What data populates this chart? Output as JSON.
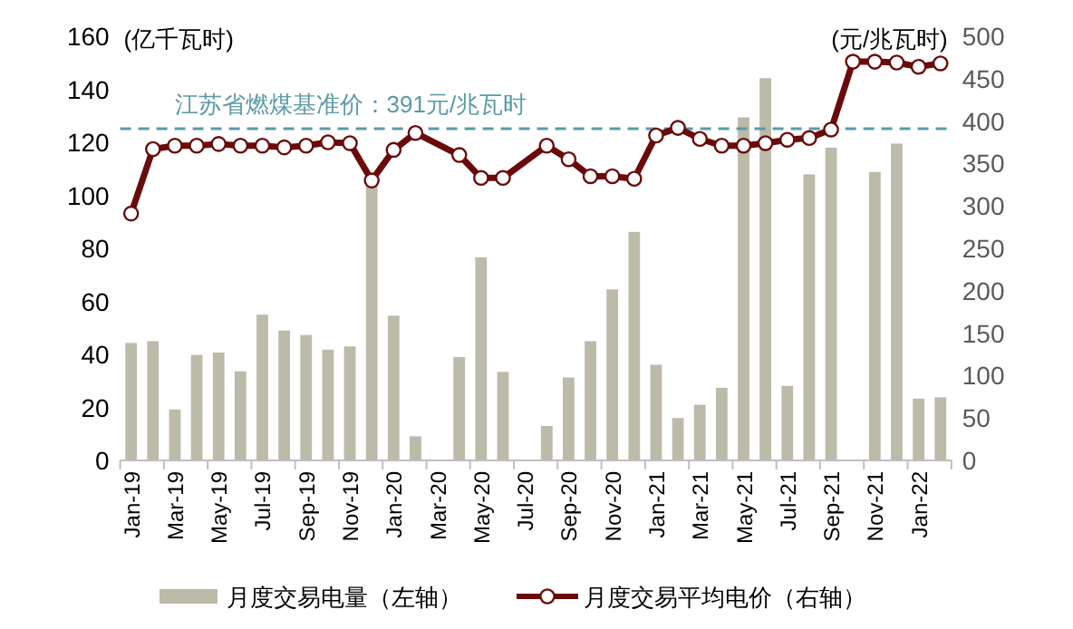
{
  "chart_data": {
    "type": "bar",
    "categories": [
      "Jan-19",
      null,
      "Mar-19",
      null,
      "May-19",
      null,
      "Jul-19",
      null,
      "Sep-19",
      null,
      "Nov-19",
      null,
      "Jan-20",
      null,
      "Mar-20",
      null,
      "May-20",
      null,
      "Jul-20",
      null,
      "Sep-20",
      null,
      "Nov-20",
      null,
      "Jan-21",
      null,
      "Mar-21",
      null,
      "May-21",
      null,
      "Jul-21",
      null,
      "Sep-21",
      null,
      "Nov-21",
      null,
      "Jan-22",
      null
    ],
    "series": [
      {
        "name": "月度交易电量（左轴）",
        "color": "#bcbaa8",
        "values": [
          44.3,
          45,
          19.2,
          39.8,
          40.7,
          33.6,
          55,
          49,
          47.3,
          41.8,
          43,
          104.5,
          54.6,
          9.1,
          null,
          39,
          76.6,
          33.4,
          null,
          13,
          31.3,
          45,
          64.5,
          86.2,
          36.1,
          16,
          21,
          27.4,
          129.4,
          144.2,
          28.1,
          107.9,
          118,
          null,
          108.8,
          119.5,
          23.3,
          23.8
        ]
      },
      {
        "name": "月度交易平均电价（右轴）",
        "type": "line",
        "axis": "y2",
        "color": "#6b0a0a",
        "marker": "circle",
        "values": [
          291,
          367,
          371,
          371,
          373,
          371,
          371,
          369,
          371,
          375,
          374,
          330,
          366,
          386,
          null,
          360,
          333,
          333,
          null,
          371,
          355,
          335,
          335,
          332,
          383,
          392,
          379,
          371,
          371,
          374,
          378,
          380,
          390,
          470,
          470,
          469,
          464,
          468
        ]
      }
    ],
    "ylabel": "(亿千瓦时)",
    "y2label": "(元/兆瓦时)",
    "ylim": [
      0,
      160
    ],
    "yticks": [
      0,
      20,
      40,
      60,
      80,
      100,
      120,
      140,
      160
    ],
    "y2lim": [
      0,
      500
    ],
    "y2ticks": [
      0,
      50,
      100,
      150,
      200,
      250,
      300,
      350,
      400,
      450,
      500
    ],
    "ref_lines": [
      {
        "axis": "y2",
        "value": 391,
        "label": "江苏省燃煤基准价：391元/兆瓦时",
        "color": "#5b9aa8",
        "line_style": "dashed"
      }
    ],
    "grid": false,
    "legend": "bottom"
  }
}
